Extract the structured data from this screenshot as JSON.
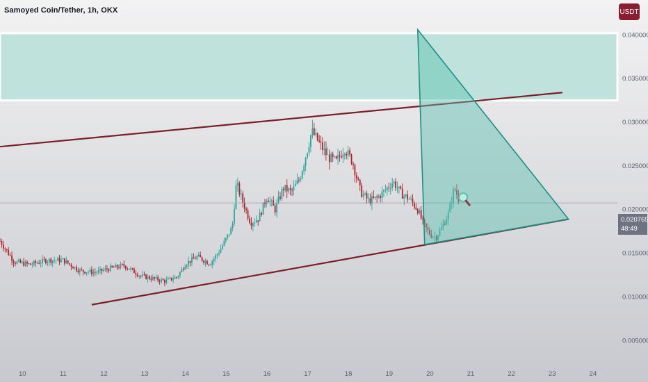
{
  "header": {
    "title": "Samoyed Coin/Tether, 1h, OKX",
    "currency_badge": "USDT"
  },
  "price_tag": {
    "price": "0.020765",
    "countdown": "48:49",
    "color": "#6f7280"
  },
  "colors": {
    "background_top": "#f2f2f3",
    "background_bottom": "#c8c9ce",
    "zone_fill": "#bfe3dc",
    "zone_border": "#ffffff",
    "triangle_fill": "#5bbfb0",
    "triangle_stroke": "#1c8f84",
    "trendline": "#7a1f2a",
    "candle_up": "#26a69a",
    "candle_down": "#b0202e",
    "current_price_line": "#9598a1",
    "badge": "#8b1d33"
  },
  "chart_data": {
    "type": "candlestick",
    "title": "Samoyed Coin/Tether, 1h, OKX",
    "x_ticks": [
      "10",
      "11",
      "12",
      "13",
      "14",
      "15",
      "16",
      "17",
      "18",
      "19",
      "20",
      "21",
      "22",
      "23",
      "24"
    ],
    "y_ticks": [
      "0.040000",
      "0.035000",
      "0.030000",
      "0.025000",
      "0.020000",
      "0.015000",
      "0.010000",
      "0.005000"
    ],
    "y_tick_values": [
      0.04,
      0.035,
      0.03,
      0.025,
      0.02,
      0.015,
      0.01,
      0.005
    ],
    "ylim": [
      0.002,
      0.044
    ],
    "xlim": [
      9.45,
      24.6
    ],
    "grid": false,
    "current_price": 0.020765,
    "price_path_days": [
      9.45,
      9.8,
      10.2,
      10.6,
      11.0,
      11.4,
      11.8,
      12.1,
      12.5,
      12.9,
      13.2,
      13.5,
      13.8,
      14.0,
      14.3,
      14.6,
      14.8,
      14.95,
      15.15,
      15.25,
      15.4,
      15.6,
      15.8,
      16.0,
      16.2,
      16.4,
      16.6,
      16.8,
      17.0,
      17.1,
      17.3,
      17.5,
      17.7,
      17.9,
      18.1,
      18.3,
      18.5,
      18.7,
      18.9,
      19.1,
      19.3,
      19.5,
      19.7,
      19.85,
      20.0,
      20.15,
      20.3,
      20.45,
      20.6,
      20.73
    ],
    "price_path_values": [
      0.0164,
      0.014,
      0.0137,
      0.0142,
      0.0142,
      0.013,
      0.0128,
      0.0132,
      0.0136,
      0.0124,
      0.0121,
      0.0118,
      0.0123,
      0.0138,
      0.0146,
      0.0138,
      0.015,
      0.0162,
      0.018,
      0.023,
      0.021,
      0.0185,
      0.019,
      0.0215,
      0.02,
      0.0225,
      0.022,
      0.0235,
      0.027,
      0.029,
      0.0275,
      0.026,
      0.0255,
      0.027,
      0.0255,
      0.022,
      0.021,
      0.0213,
      0.0222,
      0.0232,
      0.0218,
      0.0212,
      0.02,
      0.0182,
      0.0172,
      0.0168,
      0.018,
      0.0195,
      0.0225,
      0.0208
    ],
    "supply_zone": [
      0.0325,
      0.0402
    ],
    "upper_trendline": [
      [
        9.45,
        0.0272
      ],
      [
        23.25,
        0.0334
      ]
    ],
    "lower_trendline": [
      [
        11.7,
        0.0091
      ],
      [
        23.4,
        0.0189
      ]
    ],
    "triangle": [
      [
        19.7,
        0.0406
      ],
      [
        19.87,
        0.016
      ],
      [
        23.4,
        0.0189
      ]
    ]
  }
}
